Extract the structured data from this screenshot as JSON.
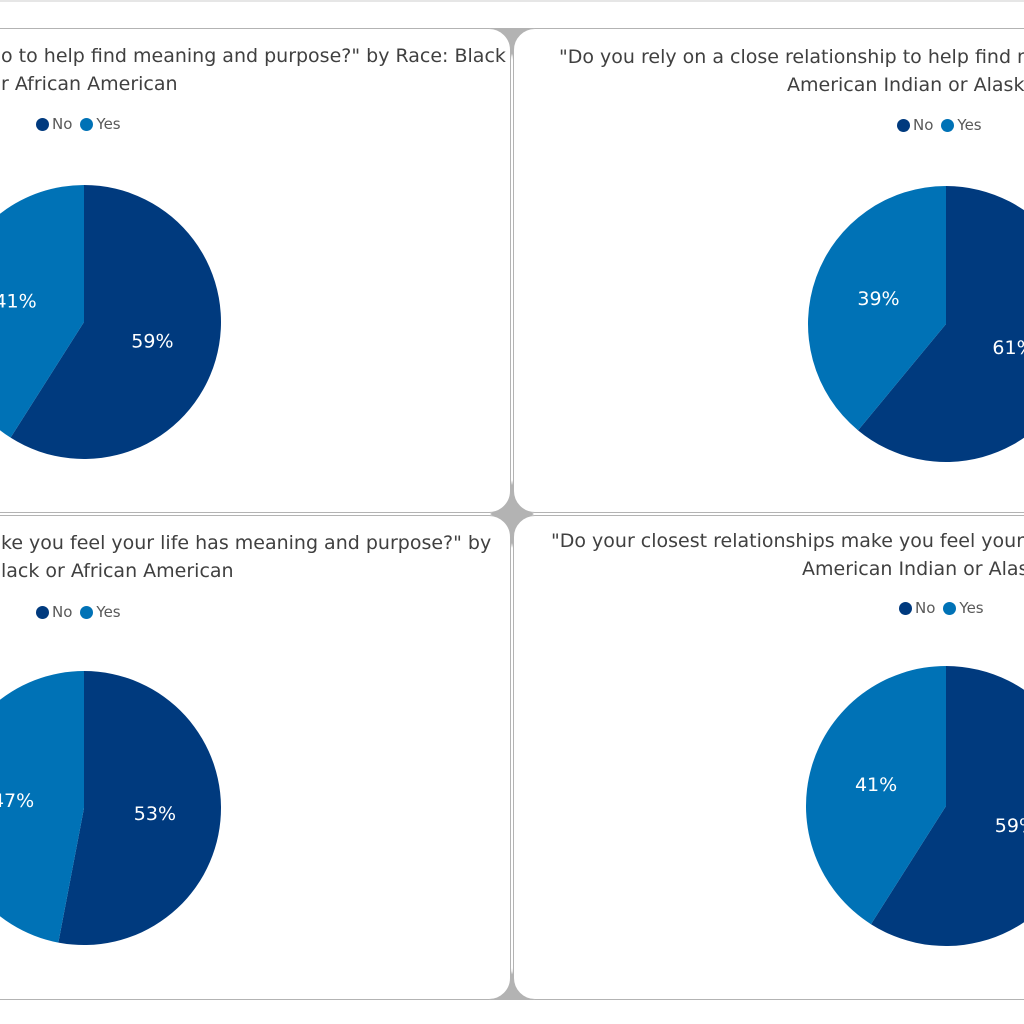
{
  "colors": {
    "no": "#003A7E",
    "yes": "#0072B6",
    "label": "#ffffff"
  },
  "chart_data": [
    {
      "type": "pie",
      "title_lines": [
        "o to help find meaning and purpose?\" by Race: Black",
        "r African American"
      ],
      "legend": [
        "No",
        "Yes"
      ],
      "categories": [
        "No",
        "Yes"
      ],
      "values": [
        59,
        41
      ],
      "data_labels": [
        "59%",
        "41%"
      ]
    },
    {
      "type": "pie",
      "title_lines": [
        "\"Do you rely on a close relationship to help find m",
        "American Indian or Alask"
      ],
      "legend": [
        "No",
        "Yes"
      ],
      "categories": [
        "No",
        "Yes"
      ],
      "values": [
        61,
        39
      ],
      "data_labels": [
        "61%",
        "39%"
      ]
    },
    {
      "type": "pie",
      "title_lines": [
        "ke you feel your life has meaning and purpose?\" by",
        "lack or African American"
      ],
      "legend": [
        "No",
        "Yes"
      ],
      "categories": [
        "No",
        "Yes"
      ],
      "values": [
        53,
        47
      ],
      "data_labels": [
        "53%",
        "47%"
      ]
    },
    {
      "type": "pie",
      "title_lines": [
        "\"Do your closest relationships make you feel your life h",
        "American Indian or Alaska"
      ],
      "legend": [
        "No",
        "Yes"
      ],
      "categories": [
        "No",
        "Yes"
      ],
      "values": [
        59,
        41
      ],
      "data_labels": [
        "59%",
        "41%"
      ]
    }
  ]
}
